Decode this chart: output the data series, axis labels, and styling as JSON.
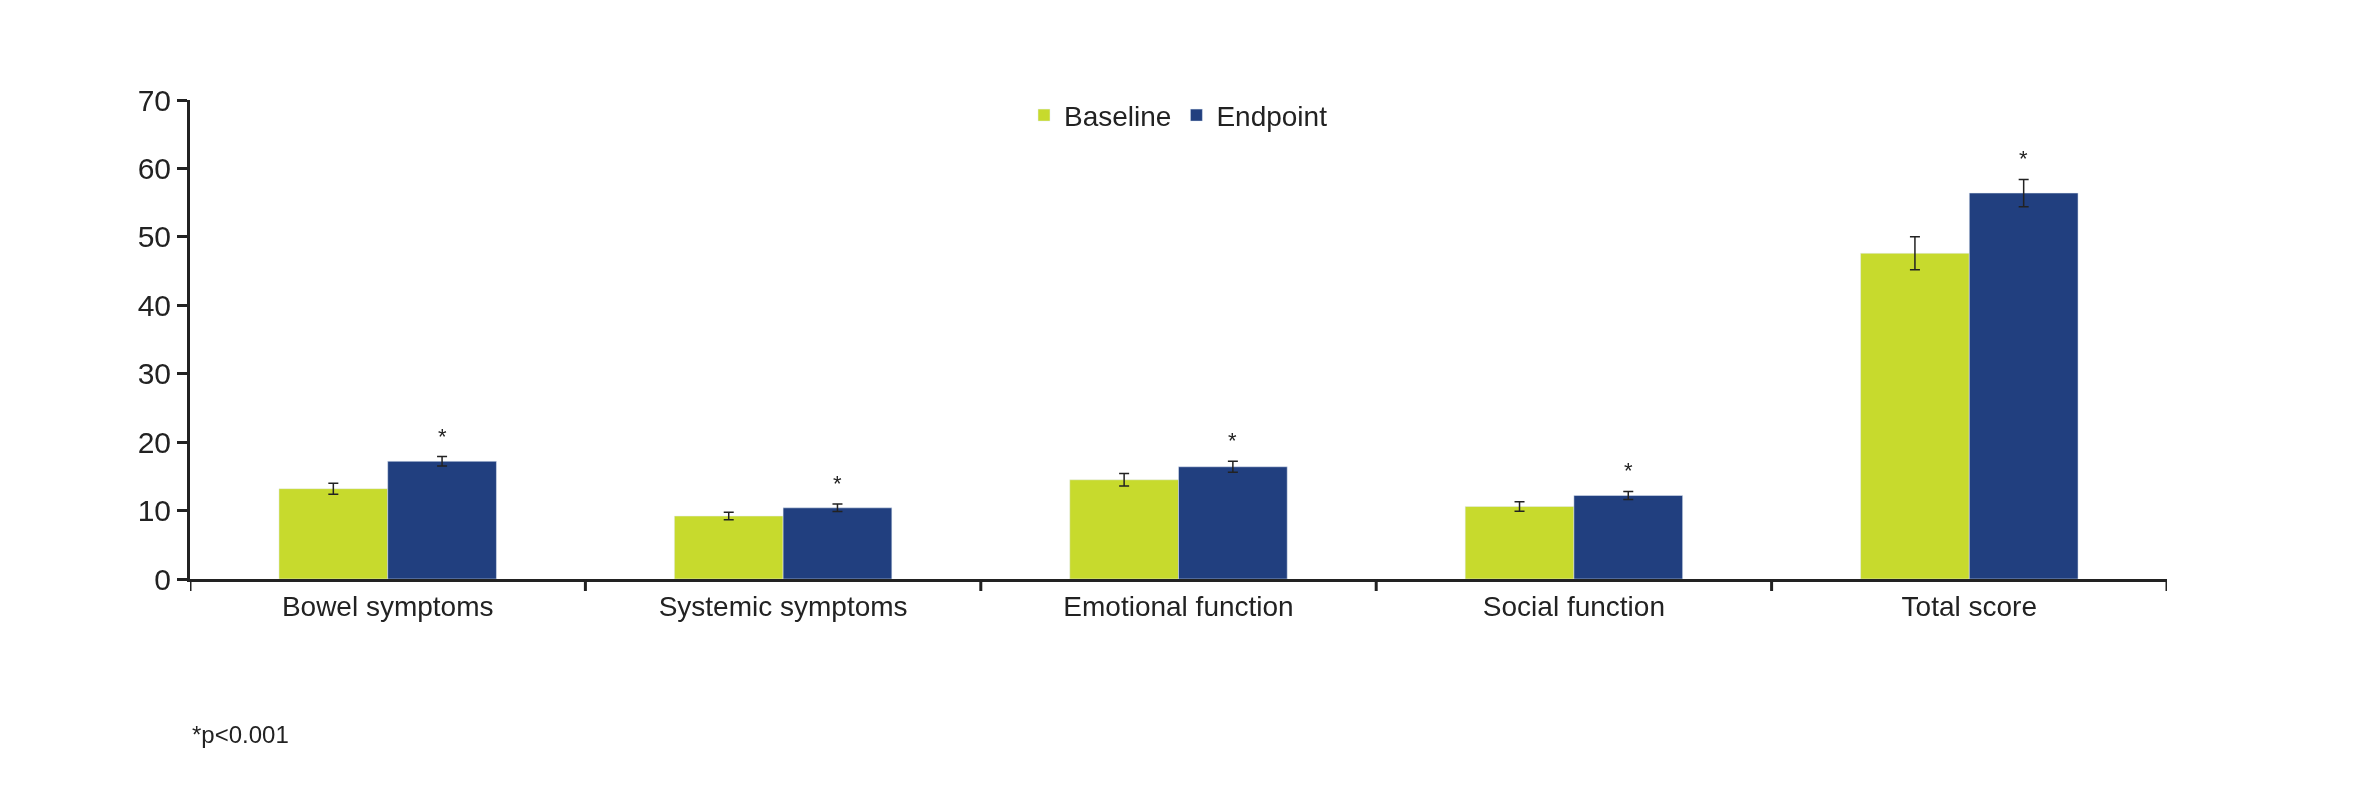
{
  "chart_data": {
    "type": "bar",
    "categories": [
      "Bowel symptoms",
      "Systemic symptoms",
      "Emotional function",
      "Social function",
      "Total score"
    ],
    "series": [
      {
        "name": "Baseline",
        "color": "#c7da2d",
        "values": [
          13.2,
          9.2,
          14.5,
          10.6,
          47.6
        ],
        "errors": [
          0.8,
          0.55,
          0.9,
          0.7,
          2.4
        ]
      },
      {
        "name": "Endpoint",
        "color": "#213f7f",
        "values": [
          17.2,
          10.4,
          16.4,
          12.2,
          56.4
        ],
        "errors": [
          0.7,
          0.55,
          0.8,
          0.6,
          2.0
        ]
      }
    ],
    "ylim": [
      0,
      70
    ],
    "yticks": [
      0,
      10,
      20,
      30,
      40,
      50,
      60,
      70
    ],
    "legend": "top",
    "annotations": [
      "*",
      "*",
      "*",
      "*",
      "*",
      "*p<0.001"
    ]
  }
}
